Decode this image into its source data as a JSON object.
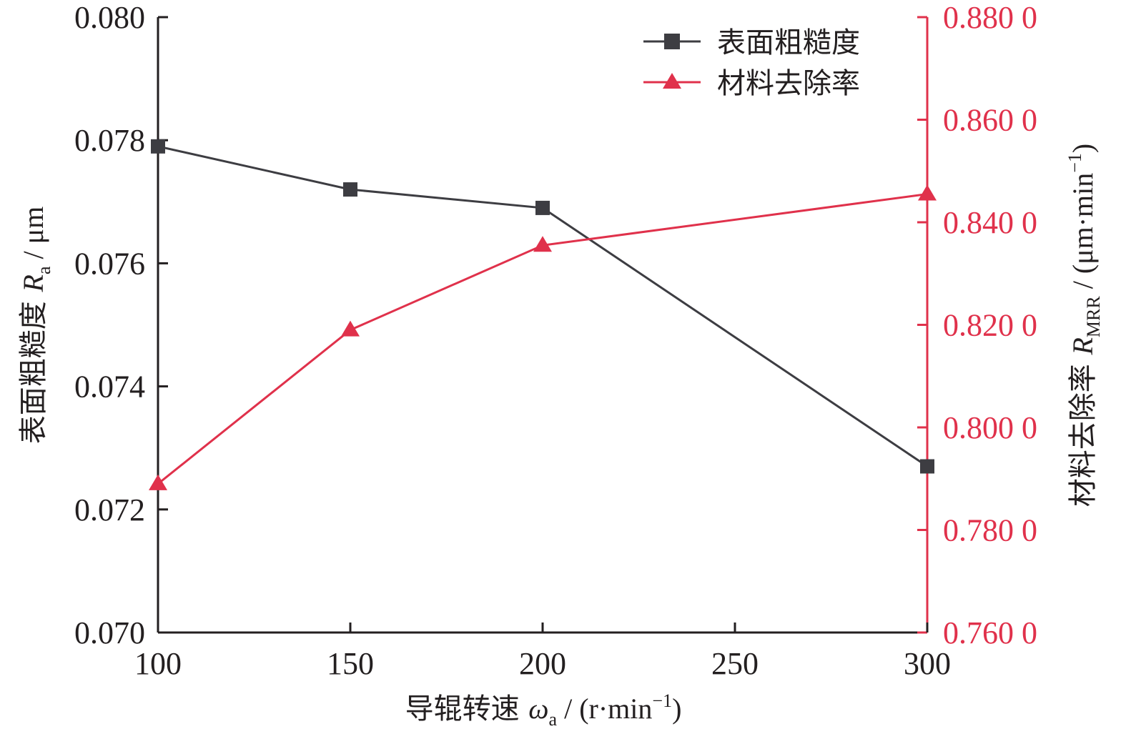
{
  "colors": {
    "axis": "#231f20",
    "roughness": "#3d3d42",
    "mrr": "#e0314b"
  },
  "icons": {
    "roughness_marker": "square-marker-icon",
    "mrr_marker": "triangle-marker-icon"
  },
  "chart_data": {
    "type": "line",
    "title": "",
    "x": [
      100,
      150,
      200,
      300
    ],
    "xlim": [
      100,
      300
    ],
    "xticks": [
      "100",
      "150",
      "200",
      "250",
      "300"
    ],
    "xlabel": {
      "prefix": "导辊转速 ",
      "symbol": "ω",
      "sub": "a",
      "suffix": " / (r·min",
      "sup": "−1",
      "close": ")"
    },
    "y_left": {
      "ylim": [
        0.07,
        0.08
      ],
      "ticks": [
        "0.070",
        "0.072",
        "0.074",
        "0.076",
        "0.078",
        "0.080"
      ],
      "label": {
        "prefix": "表面粗糙度 ",
        "symbol": "R",
        "sub": "a",
        "suffix": " / μm"
      }
    },
    "y_right": {
      "ylim": [
        0.76,
        0.88
      ],
      "ticks": [
        "0.760 0",
        "0.780 0",
        "0.800 0",
        "0.820 0",
        "0.840 0",
        "0.860 0",
        "0.880 0"
      ],
      "label": {
        "prefix": "材料去除率 ",
        "symbol": "R",
        "sub": "MRR",
        "suffix": " / (μm·min",
        "sup": "−1",
        "close": ")"
      }
    },
    "legend": "top-right",
    "grid": false,
    "series": [
      {
        "name": "表面粗糙度",
        "axis": "left",
        "marker": "square",
        "values": [
          0.0779,
          0.0772,
          0.0769,
          0.0727
        ]
      },
      {
        "name": "材料去除率",
        "axis": "right",
        "marker": "triangle",
        "values": [
          0.789,
          0.819,
          0.8355,
          0.8455
        ]
      }
    ]
  }
}
